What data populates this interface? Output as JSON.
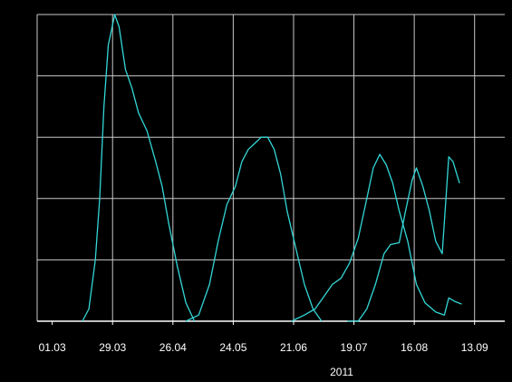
{
  "chart_data": {
    "type": "line",
    "title": "",
    "xlabel": "2011",
    "ylabel": "",
    "x_axis_type": "date",
    "x_ticks": [
      "2011-03-01",
      "2011-03-29",
      "2011-04-26",
      "2011-05-24",
      "2011-06-21",
      "2011-07-19",
      "2011-08-16",
      "2011-09-13"
    ],
    "x_tick_labels": [
      "01.03",
      "29.03",
      "26.04",
      "24.05",
      "21.06",
      "19.07",
      "16.08",
      "13.09"
    ],
    "year_label": "2011",
    "xlim": [
      "2011-02-22",
      "2011-09-27"
    ],
    "ylim": [
      0,
      5
    ],
    "y_grid_lines": [
      1,
      2,
      3,
      4
    ],
    "grid": true,
    "legend": "none",
    "colors": {
      "background": "#000000",
      "grid": "#c8c8c8",
      "series": "#33d6d6",
      "text": "#ffffff"
    },
    "series": [
      {
        "points": [
          [
            "2011-03-15",
            0.0
          ],
          [
            "2011-03-18",
            0.2
          ],
          [
            "2011-03-21",
            1.0
          ],
          [
            "2011-03-23",
            2.0
          ],
          [
            "2011-03-25",
            3.5
          ],
          [
            "2011-03-27",
            4.5
          ],
          [
            "2011-03-30",
            5.0
          ],
          [
            "2011-04-01",
            4.8
          ],
          [
            "2011-04-04",
            4.1
          ],
          [
            "2011-04-07",
            3.8
          ],
          [
            "2011-04-10",
            3.4
          ],
          [
            "2011-04-14",
            3.1
          ],
          [
            "2011-04-18",
            2.6
          ],
          [
            "2011-04-21",
            2.2
          ],
          [
            "2011-04-24",
            1.6
          ],
          [
            "2011-04-28",
            0.9
          ],
          [
            "2011-05-02",
            0.3
          ],
          [
            "2011-05-06",
            0.0
          ]
        ]
      },
      {
        "points": [
          [
            "2011-05-02",
            0.0
          ],
          [
            "2011-05-08",
            0.1
          ],
          [
            "2011-05-13",
            0.6
          ],
          [
            "2011-05-17",
            1.3
          ],
          [
            "2011-05-21",
            1.9
          ],
          [
            "2011-05-25",
            2.2
          ],
          [
            "2011-05-28",
            2.6
          ],
          [
            "2011-05-31",
            2.8
          ],
          [
            "2011-06-03",
            2.9
          ],
          [
            "2011-06-06",
            3.0
          ],
          [
            "2011-06-09",
            3.0
          ],
          [
            "2011-06-12",
            2.8
          ],
          [
            "2011-06-15",
            2.4
          ],
          [
            "2011-06-18",
            1.8
          ],
          [
            "2011-06-22",
            1.2
          ],
          [
            "2011-06-26",
            0.6
          ],
          [
            "2011-06-30",
            0.2
          ],
          [
            "2011-07-04",
            0.0
          ]
        ]
      },
      {
        "points": [
          [
            "2011-06-20",
            0.0
          ],
          [
            "2011-06-26",
            0.1
          ],
          [
            "2011-07-01",
            0.2
          ],
          [
            "2011-07-05",
            0.4
          ],
          [
            "2011-07-09",
            0.6
          ],
          [
            "2011-07-13",
            0.7
          ],
          [
            "2011-07-17",
            0.95
          ],
          [
            "2011-07-21",
            1.35
          ],
          [
            "2011-07-25",
            2.0
          ],
          [
            "2011-07-28",
            2.5
          ],
          [
            "2011-07-31",
            2.72
          ],
          [
            "2011-08-03",
            2.55
          ],
          [
            "2011-08-06",
            2.25
          ],
          [
            "2011-08-09",
            1.8
          ],
          [
            "2011-08-13",
            1.3
          ],
          [
            "2011-08-17",
            0.6
          ],
          [
            "2011-08-21",
            0.3
          ],
          [
            "2011-08-26",
            0.15
          ],
          [
            "2011-08-30",
            0.1
          ],
          [
            "2011-09-01",
            0.38
          ],
          [
            "2011-09-04",
            0.32
          ],
          [
            "2011-09-07",
            0.28
          ]
        ]
      },
      {
        "points": [
          [
            "2011-07-16",
            0.0
          ],
          [
            "2011-07-21",
            0.0
          ],
          [
            "2011-07-25",
            0.2
          ],
          [
            "2011-07-29",
            0.6
          ],
          [
            "2011-08-02",
            1.1
          ],
          [
            "2011-08-05",
            1.25
          ],
          [
            "2011-08-09",
            1.28
          ],
          [
            "2011-08-12",
            1.8
          ],
          [
            "2011-08-15",
            2.3
          ],
          [
            "2011-08-17",
            2.5
          ],
          [
            "2011-08-20",
            2.2
          ],
          [
            "2011-08-23",
            1.8
          ],
          [
            "2011-08-26",
            1.3
          ],
          [
            "2011-08-29",
            1.1
          ],
          [
            "2011-09-01",
            2.68
          ],
          [
            "2011-09-03",
            2.6
          ],
          [
            "2011-09-06",
            2.25
          ]
        ]
      }
    ]
  }
}
